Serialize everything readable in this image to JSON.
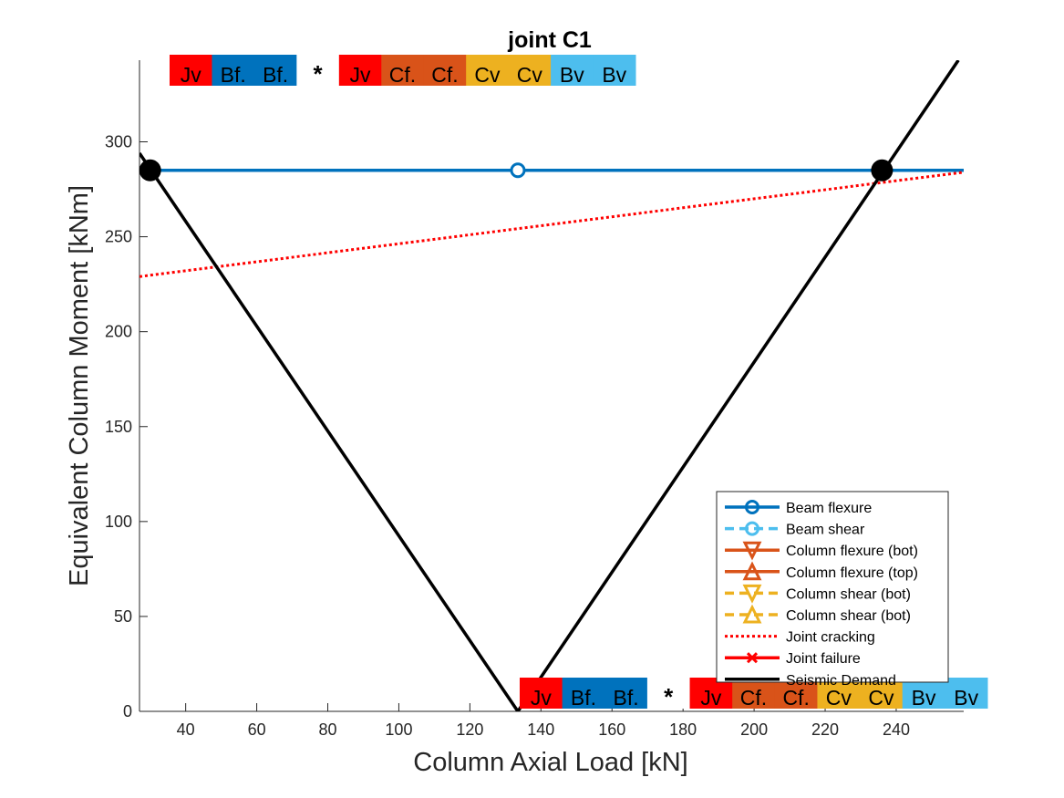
{
  "chart_data": {
    "type": "line",
    "title": "joint C1",
    "xlabel": "Column Axial Load [kN]",
    "ylabel": "Equivalent Column Moment [kNm]",
    "xlim": [
      27,
      259
    ],
    "ylim": [
      0,
      343
    ],
    "xticks": [
      40,
      60,
      80,
      100,
      120,
      140,
      160,
      180,
      200,
      220,
      240
    ],
    "yticks": [
      0,
      50,
      100,
      150,
      200,
      250,
      300
    ],
    "grid": false,
    "legend_position": "bottom-right",
    "series": [
      {
        "name": "Beam flexure",
        "color": "#0072BD",
        "line_style": "solid",
        "marker": "circle",
        "x": [
          27,
          259
        ],
        "y": [
          285,
          285
        ],
        "marker_points": [
          [
            133.5,
            285
          ]
        ]
      },
      {
        "name": "Beam shear",
        "color": "#4DBEEE",
        "line_style": "dashed",
        "marker": "circle",
        "x": [],
        "y": []
      },
      {
        "name": "Column flexure (bot)",
        "color": "#D95319",
        "line_style": "solid",
        "marker": "triangle-down",
        "x": [],
        "y": []
      },
      {
        "name": "Column flexure (top)",
        "color": "#D95319",
        "line_style": "solid",
        "marker": "triangle-up",
        "x": [],
        "y": []
      },
      {
        "name": "Column shear (bot)",
        "color": "#EDB120",
        "line_style": "dashed",
        "marker": "triangle-down",
        "x": [],
        "y": []
      },
      {
        "name": "Column shear (bot)",
        "color": "#EDB120",
        "line_style": "dashed",
        "marker": "triangle-up",
        "x": [],
        "y": []
      },
      {
        "name": "Joint cracking",
        "color": "#FF0000",
        "line_style": "dotted",
        "marker": "none",
        "x": [
          27,
          259
        ],
        "y": [
          229,
          284
        ]
      },
      {
        "name": "Joint failure",
        "color": "#FF0000",
        "line_style": "solid",
        "marker": "x",
        "x": [],
        "y": []
      },
      {
        "name": "Seismic Demand",
        "color": "#000000",
        "line_style": "solid",
        "marker": "none",
        "x": [
          27,
          133.5,
          257.5
        ],
        "y": [
          294,
          0,
          343
        ]
      }
    ],
    "intersection_points": {
      "color": "#000000",
      "points": [
        [
          30,
          285
        ],
        [
          236,
          285
        ]
      ]
    },
    "hierarchy_bars": [
      {
        "position": "top",
        "cells": [
          {
            "label": "Jv",
            "color": "#FF0000"
          },
          {
            "label": "Bf.",
            "color": "#0072BD"
          },
          {
            "label": "Bf.",
            "color": "#0072BD"
          },
          {
            "label": "*",
            "color": "#FFFFFF"
          },
          {
            "label": "Jv",
            "color": "#FF0000"
          },
          {
            "label": "Cf.",
            "color": "#D95319"
          },
          {
            "label": "Cf.",
            "color": "#D95319"
          },
          {
            "label": "Cv",
            "color": "#EDB120"
          },
          {
            "label": "Cv",
            "color": "#EDB120"
          },
          {
            "label": "Bv",
            "color": "#4DBEEE"
          },
          {
            "label": "Bv",
            "color": "#4DBEEE"
          }
        ]
      },
      {
        "position": "bottom",
        "cells": [
          {
            "label": "Jv",
            "color": "#FF0000"
          },
          {
            "label": "Bf.",
            "color": "#0072BD"
          },
          {
            "label": "Bf.",
            "color": "#0072BD"
          },
          {
            "label": "*",
            "color": "#FFFFFF"
          },
          {
            "label": "Jv",
            "color": "#FF0000"
          },
          {
            "label": "Cf.",
            "color": "#D95319"
          },
          {
            "label": "Cf.",
            "color": "#D95319"
          },
          {
            "label": "Cv",
            "color": "#EDB120"
          },
          {
            "label": "Cv",
            "color": "#EDB120"
          },
          {
            "label": "Bv",
            "color": "#4DBEEE"
          },
          {
            "label": "Bv",
            "color": "#4DBEEE"
          }
        ]
      }
    ]
  }
}
